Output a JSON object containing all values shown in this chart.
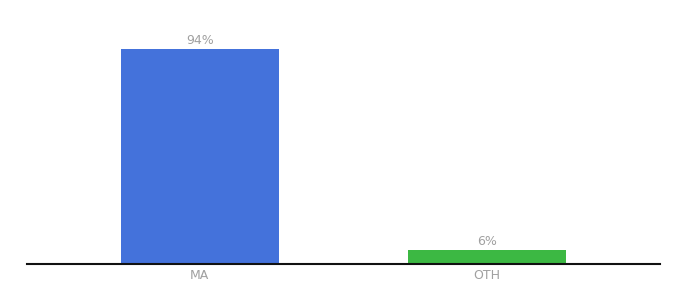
{
  "categories": [
    "MA",
    "OTH"
  ],
  "values": [
    94,
    6
  ],
  "bar_colors": [
    "#4472db",
    "#3cb843"
  ],
  "value_labels": [
    "94%",
    "6%"
  ],
  "background_color": "#ffffff",
  "text_color": "#a0a0a0",
  "axis_line_color": "#111111",
  "label_fontsize": 9,
  "value_fontsize": 9,
  "ylim": [
    0,
    105
  ],
  "bar_width": 0.55
}
